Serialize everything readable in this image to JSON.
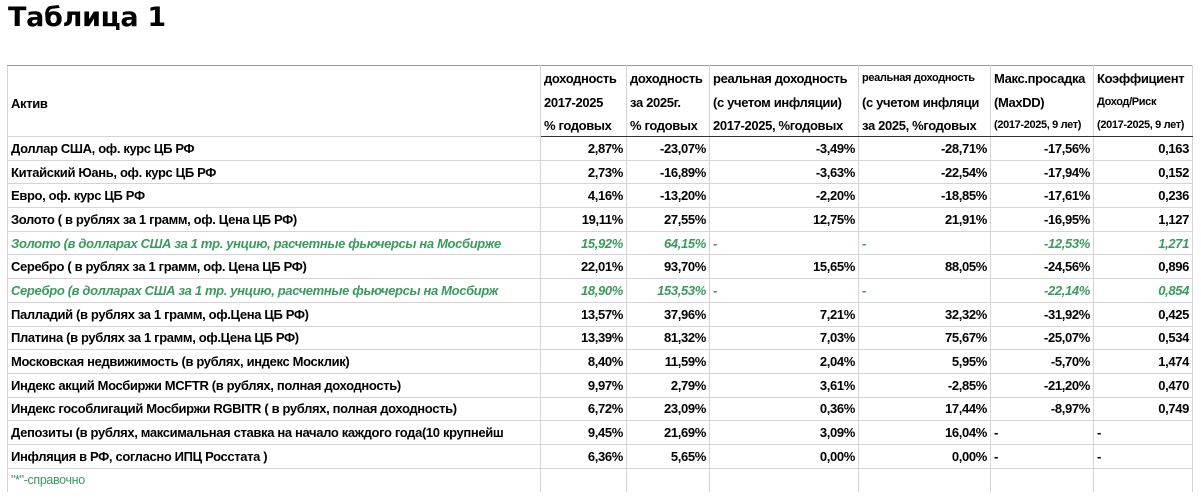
{
  "header": {
    "title": "Таблица 1"
  },
  "table": {
    "columns": [
      [
        "Актив"
      ],
      [
        "доходность",
        "2017-2025",
        "% годовых"
      ],
      [
        "доходность",
        "за 2025г.",
        "% годовых"
      ],
      [
        "реальная доходность",
        "(с учетом инфляции)",
        "2017-2025, %годовых"
      ],
      [
        "реальная доходность",
        "(с учетом инфляци",
        "за 2025, %годовых"
      ],
      [
        "Макс.просадка",
        "(MaxDD)",
        "(2017-2025, 9 лет)"
      ],
      [
        "Коэффициент",
        "Доход/Риск",
        "(2017-2025, 9 лет)"
      ]
    ],
    "rows": [
      {
        "cells": [
          "Доллар США, оф. курс ЦБ РФ",
          "2,87%",
          "-23,07%",
          "-3,49%",
          "-28,71%",
          "-17,56%",
          "0,163"
        ]
      },
      {
        "cells": [
          "Китайский Юань, оф. курс ЦБ РФ",
          "2,73%",
          "-16,89%",
          "-3,63%",
          "-22,54%",
          "-17,94%",
          "0,152"
        ]
      },
      {
        "cells": [
          "Евро, оф. курс ЦБ РФ",
          "4,16%",
          "-13,20%",
          "-2,20%",
          "-18,85%",
          "-17,61%",
          "0,236"
        ]
      },
      {
        "cells": [
          "Золото ( в рублях за 1 грамм, оф. Цена ЦБ РФ)",
          "19,11%",
          "27,55%",
          "12,75%",
          "21,91%",
          "-16,95%",
          "1,127"
        ]
      },
      {
        "cells": [
          "Золото (в долларах США за 1 тр. унцию, расчетные фьючерсы на Мосбирже",
          "15,92%",
          "64,15%",
          "-",
          "-",
          "-12,53%",
          "1,271"
        ],
        "color": "#3a9a5e"
      },
      {
        "cells": [
          "Серебро ( в рублях за 1 грамм, оф. Цена ЦБ РФ)",
          "22,01%",
          "93,70%",
          "15,65%",
          "88,05%",
          "-24,56%",
          "0,896"
        ]
      },
      {
        "cells": [
          "Серебро (в долларах США за 1 тр. унцию, расчетные фьючерсы на Мосбирж",
          "18,90%",
          "153,53%",
          "-",
          "-",
          "-22,14%",
          "0,854"
        ],
        "color": "#3a9a5e"
      },
      {
        "cells": [
          "Палладий (в рублях за 1 грамм, оф.Цена ЦБ РФ)",
          "13,57%",
          "37,96%",
          "7,21%",
          "32,32%",
          "-31,92%",
          "0,425"
        ]
      },
      {
        "cells": [
          "Платина (в рублях за 1 грамм, оф.Цена ЦБ РФ)",
          "13,39%",
          "81,32%",
          "7,03%",
          "75,67%",
          "-25,07%",
          "0,534"
        ]
      },
      {
        "cells": [
          "Московская недвижимость (в рублях, индекс Москлик)",
          "8,40%",
          "11,59%",
          "2,04%",
          "5,95%",
          "-5,70%",
          "1,474"
        ]
      },
      {
        "cells": [
          "Индекс акций Мосбиржи MCFTR (в рублях, полная доходность)",
          "9,97%",
          "2,79%",
          "3,61%",
          "-2,85%",
          "-21,20%",
          "0,470"
        ]
      },
      {
        "cells": [
          "Индекс гособлигаций Мосбиржи RGBITR ( в рублях, полная доходность)",
          "6,72%",
          "23,09%",
          "0,36%",
          "17,44%",
          "-8,97%",
          "0,749"
        ]
      },
      {
        "cells": [
          "Депозиты (в рублях, максимальная ставка на начало каждого года(10 крупнейш",
          "9,45%",
          "21,69%",
          "3,09%",
          "16,04%",
          "-",
          "-"
        ]
      },
      {
        "cells": [
          " Инфляция в РФ, согласно ИПЦ  Росстата )",
          "6,36%",
          "5,65%",
          "0,00%",
          "0,00%",
          "-",
          "-"
        ]
      }
    ],
    "footnote": {
      "text": "\"*\"-справочно",
      "color": "#3a9a5e"
    }
  }
}
